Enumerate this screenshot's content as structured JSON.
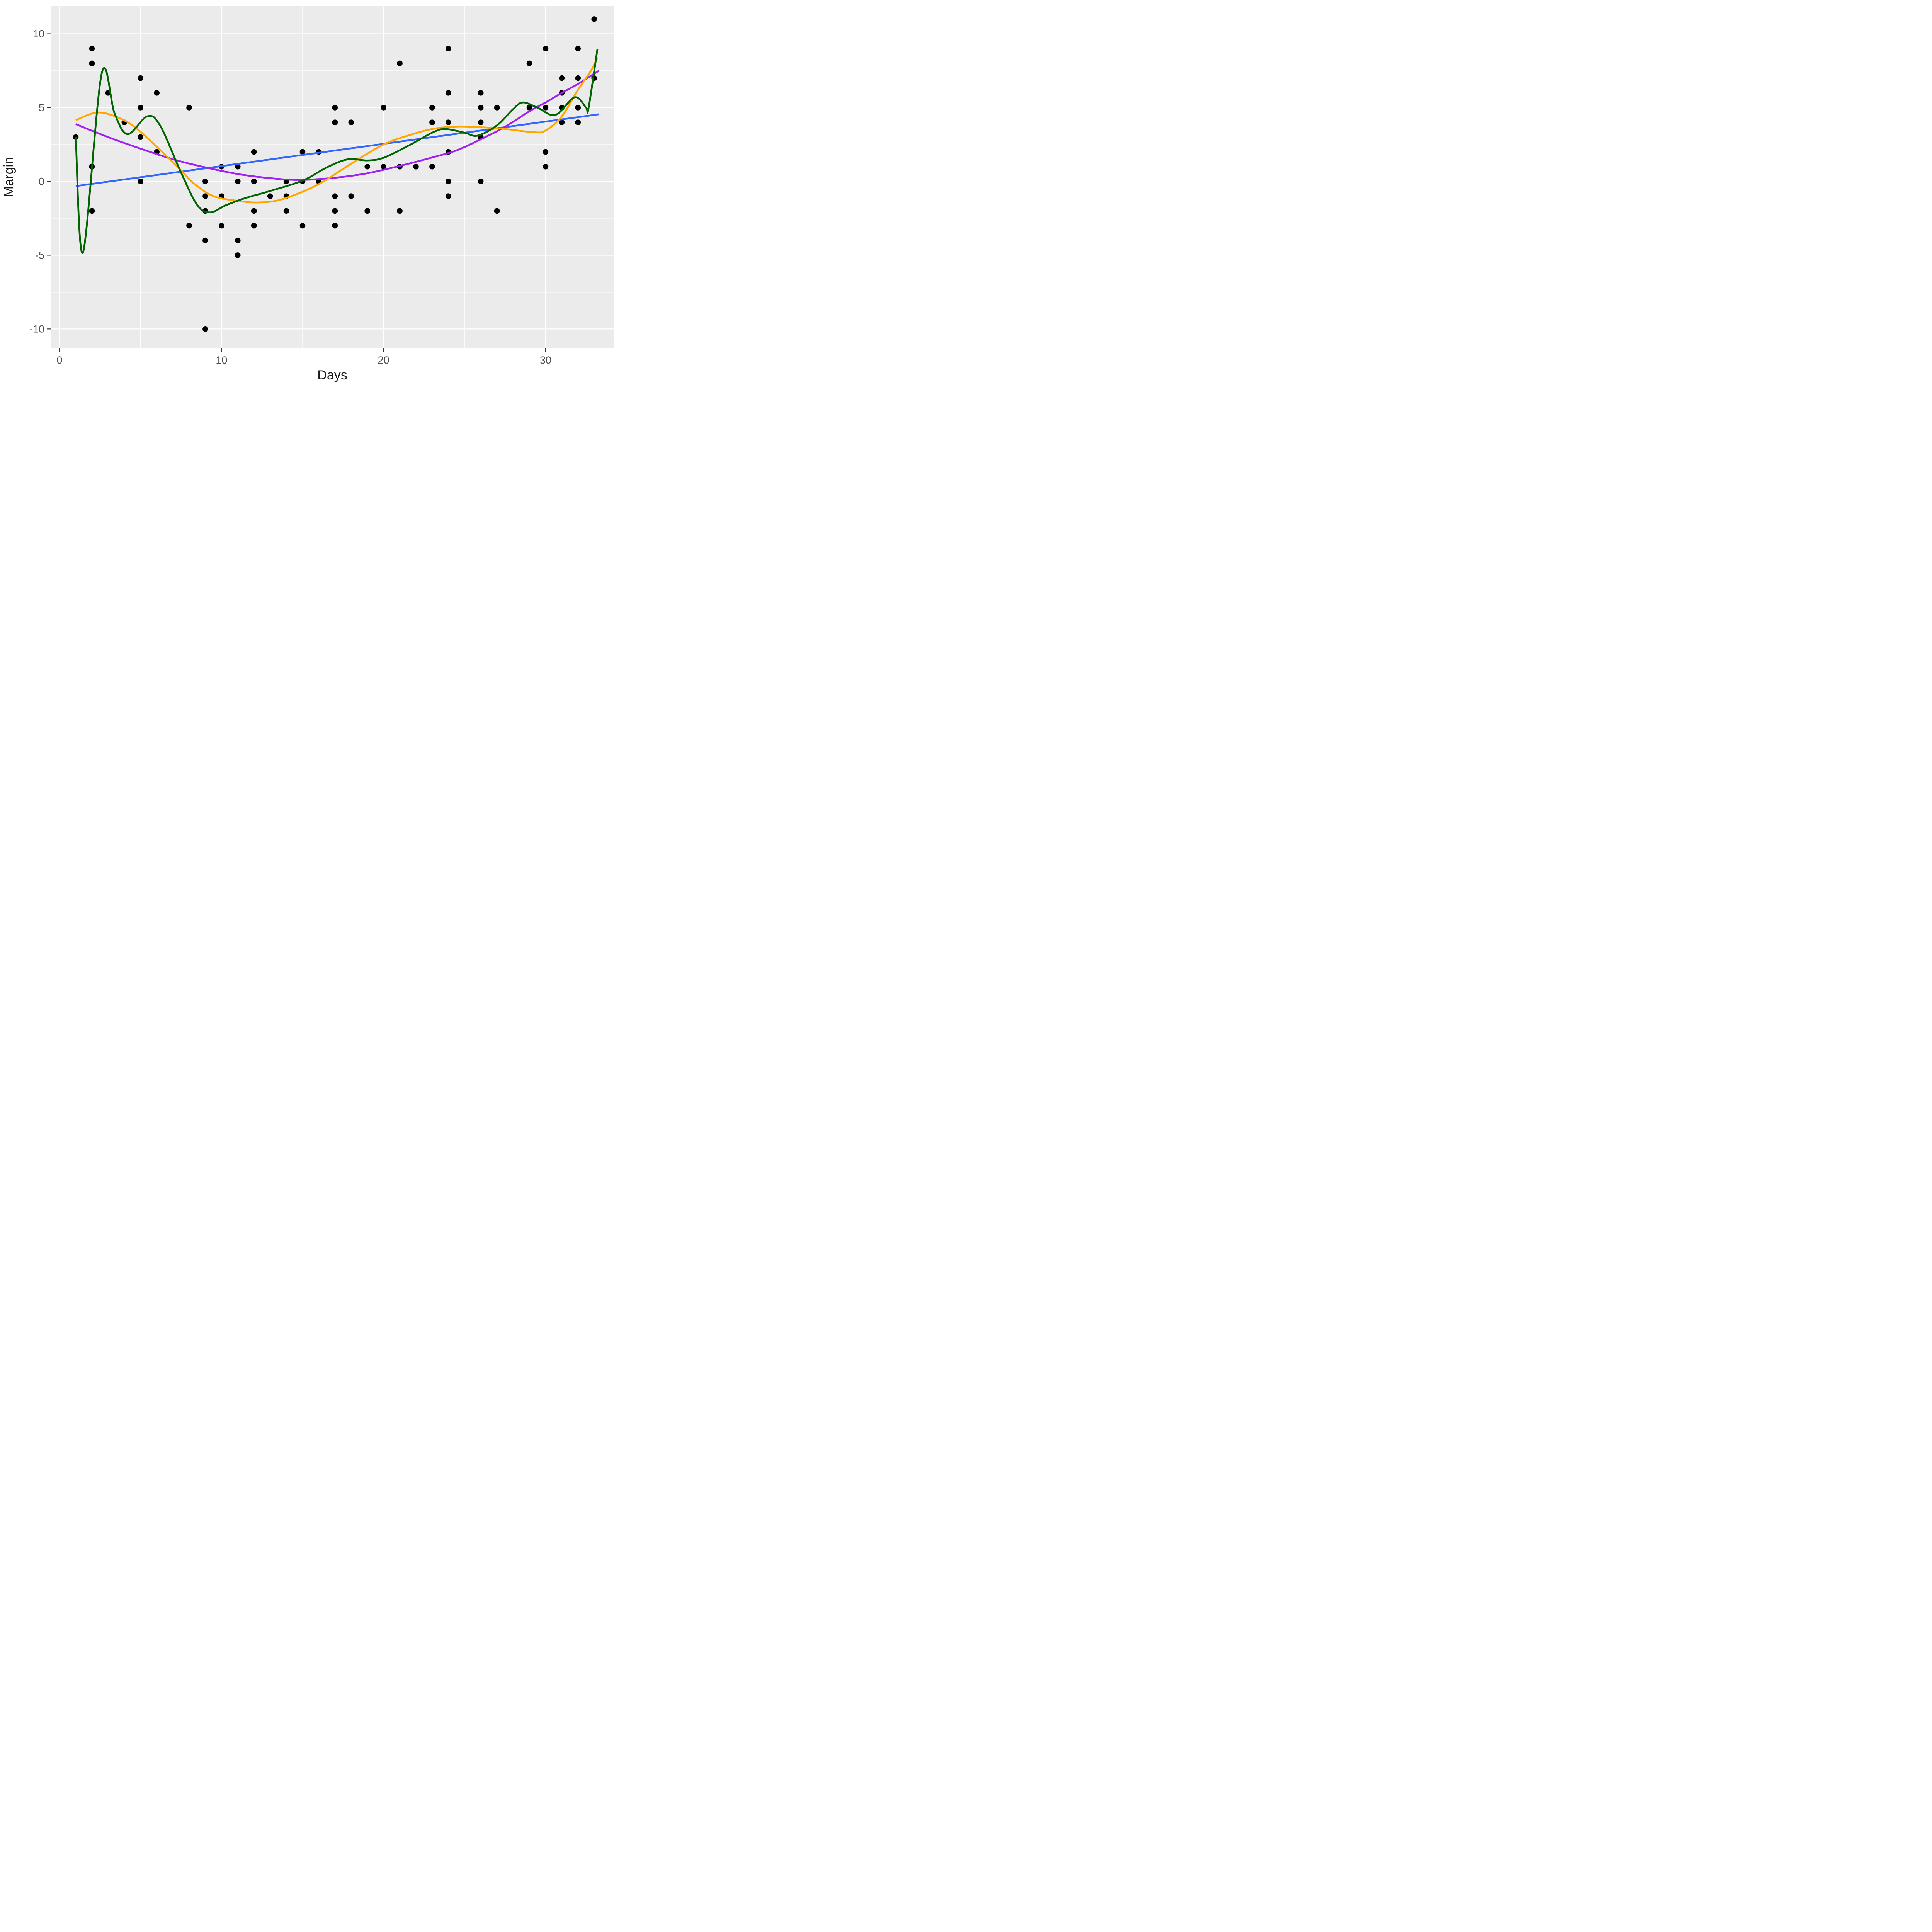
{
  "chart_data": {
    "type": "scatter",
    "title": "",
    "xlabel": "Days",
    "ylabel": "Margin",
    "xlim": [
      -0.55,
      34.2
    ],
    "ylim": [
      -11.3,
      11.9
    ],
    "x_ticks": [
      0,
      10,
      20,
      30
    ],
    "y_ticks": [
      10,
      5,
      0,
      -5,
      -10
    ],
    "x_minor_ticks": [
      5,
      15,
      25
    ],
    "y_minor_ticks": [
      7.5,
      2.5,
      -2.5,
      -7.5
    ],
    "grid": true,
    "legend_position": "none",
    "points": [
      [
        1,
        3
      ],
      [
        2,
        9
      ],
      [
        2,
        8
      ],
      [
        2,
        1
      ],
      [
        2,
        -2
      ],
      [
        3,
        6
      ],
      [
        4,
        4
      ],
      [
        5,
        7
      ],
      [
        5,
        5
      ],
      [
        5,
        3
      ],
      [
        5,
        0
      ],
      [
        6,
        6
      ],
      [
        6,
        2
      ],
      [
        8,
        5
      ],
      [
        8,
        -3
      ],
      [
        9,
        0
      ],
      [
        9,
        -1
      ],
      [
        9,
        -2
      ],
      [
        9,
        -4
      ],
      [
        9,
        -10
      ],
      [
        10,
        1
      ],
      [
        10,
        -1
      ],
      [
        10,
        -3
      ],
      [
        11,
        1
      ],
      [
        11,
        0
      ],
      [
        11,
        -4
      ],
      [
        11,
        -5
      ],
      [
        12,
        2
      ],
      [
        12,
        0
      ],
      [
        12,
        -2
      ],
      [
        12,
        -3
      ],
      [
        13,
        -1
      ],
      [
        14,
        0
      ],
      [
        14,
        -1
      ],
      [
        14,
        -2
      ],
      [
        15,
        2
      ],
      [
        15,
        0
      ],
      [
        15,
        -3
      ],
      [
        16,
        2
      ],
      [
        16,
        0
      ],
      [
        17,
        5
      ],
      [
        17,
        4
      ],
      [
        17,
        -1
      ],
      [
        17,
        -2
      ],
      [
        17,
        -3
      ],
      [
        18,
        4
      ],
      [
        18,
        -1
      ],
      [
        19,
        1
      ],
      [
        19,
        -2
      ],
      [
        20,
        5
      ],
      [
        20,
        1
      ],
      [
        21,
        8
      ],
      [
        21,
        1
      ],
      [
        21,
        -2
      ],
      [
        22,
        1
      ],
      [
        23,
        5
      ],
      [
        23,
        4
      ],
      [
        23,
        1
      ],
      [
        24,
        9
      ],
      [
        24,
        6
      ],
      [
        24,
        4
      ],
      [
        24,
        2
      ],
      [
        24,
        0
      ],
      [
        24,
        -1
      ],
      [
        26,
        6
      ],
      [
        26,
        5
      ],
      [
        26,
        4
      ],
      [
        26,
        3
      ],
      [
        26,
        0
      ],
      [
        27,
        5
      ],
      [
        27,
        -2
      ],
      [
        29,
        8
      ],
      [
        29,
        5
      ],
      [
        30,
        9
      ],
      [
        30,
        5
      ],
      [
        30,
        2
      ],
      [
        30,
        1
      ],
      [
        31,
        7
      ],
      [
        31,
        6
      ],
      [
        31,
        5
      ],
      [
        31,
        4
      ],
      [
        32,
        9
      ],
      [
        32,
        7
      ],
      [
        32,
        5
      ],
      [
        32,
        4
      ],
      [
        33,
        11
      ],
      [
        33,
        7
      ]
    ],
    "series": [
      {
        "name": "linear-fit",
        "color": "#3366FF",
        "points": [
          [
            1,
            -0.32
          ],
          [
            33.3,
            4.55
          ]
        ]
      },
      {
        "name": "polynomial-fit",
        "color": "#A020F0",
        "points": [
          [
            1,
            3.88
          ],
          [
            3,
            3.0
          ],
          [
            5,
            2.22
          ],
          [
            7,
            1.5
          ],
          [
            9,
            0.95
          ],
          [
            11,
            0.5
          ],
          [
            13,
            0.22
          ],
          [
            14.8,
            0.1
          ],
          [
            17,
            0.25
          ],
          [
            19,
            0.55
          ],
          [
            21,
            1.05
          ],
          [
            23,
            1.62
          ],
          [
            24.5,
            2.1
          ],
          [
            26,
            2.85
          ],
          [
            27.5,
            3.7
          ],
          [
            29,
            4.75
          ],
          [
            30,
            5.35
          ],
          [
            31,
            6.0
          ],
          [
            32,
            6.6
          ],
          [
            33,
            7.3
          ],
          [
            33.3,
            7.5
          ]
        ]
      },
      {
        "name": "loess-fit",
        "color": "#FFA500",
        "points": [
          [
            1,
            4.15
          ],
          [
            2.2,
            4.65
          ],
          [
            3.2,
            4.5
          ],
          [
            4.5,
            3.8
          ],
          [
            6,
            2.35
          ],
          [
            7.5,
            0.75
          ],
          [
            8.3,
            -0.15
          ],
          [
            9.5,
            -1.0
          ],
          [
            11,
            -1.32
          ],
          [
            12.2,
            -1.43
          ],
          [
            13.5,
            -1.28
          ],
          [
            15,
            -0.7
          ],
          [
            16.3,
            0
          ],
          [
            18,
            1.2
          ],
          [
            20,
            2.5
          ],
          [
            21.5,
            3.1
          ],
          [
            23,
            3.55
          ],
          [
            24.5,
            3.72
          ],
          [
            26,
            3.67
          ],
          [
            27.5,
            3.55
          ],
          [
            29.3,
            3.33
          ],
          [
            30,
            3.45
          ],
          [
            31,
            4.4
          ],
          [
            32,
            6.2
          ],
          [
            32.8,
            7.5
          ],
          [
            33.2,
            8.4
          ]
        ]
      },
      {
        "name": "wiggly-fit",
        "color": "#006400",
        "points": [
          [
            1,
            3
          ],
          [
            1.45,
            -4.8
          ],
          [
            2.6,
            7.3
          ],
          [
            3.4,
            4.6
          ],
          [
            4.2,
            3.2
          ],
          [
            5.4,
            4.4
          ],
          [
            6.2,
            3.8
          ],
          [
            7.5,
            0.6
          ],
          [
            8.5,
            -1.6
          ],
          [
            9.3,
            -2.1
          ],
          [
            10.3,
            -1.6
          ],
          [
            11.5,
            -1.12
          ],
          [
            13,
            -0.65
          ],
          [
            15,
            0.05
          ],
          [
            16.5,
            0.95
          ],
          [
            17.8,
            1.5
          ],
          [
            19,
            1.42
          ],
          [
            20,
            1.6
          ],
          [
            21.5,
            2.4
          ],
          [
            23,
            3.3
          ],
          [
            23.8,
            3.55
          ],
          [
            25,
            3.3
          ],
          [
            25.8,
            3.1
          ],
          [
            27,
            3.8
          ],
          [
            28,
            4.9
          ],
          [
            28.6,
            5.35
          ],
          [
            29.5,
            5.0
          ],
          [
            30.6,
            4.5
          ],
          [
            31.8,
            5.7
          ],
          [
            32.5,
            5.0
          ],
          [
            32.65,
            4.95
          ],
          [
            33.2,
            8.95
          ]
        ]
      }
    ],
    "style": {
      "panel_bg": "#EBEBEB",
      "grid_color": "#FFFFFF",
      "point_color": "#000000",
      "axis_text_color": "#4D4D4D",
      "tick_mark_color": "#333333",
      "line_width": 4.6,
      "point_radius": 7.3
    }
  }
}
